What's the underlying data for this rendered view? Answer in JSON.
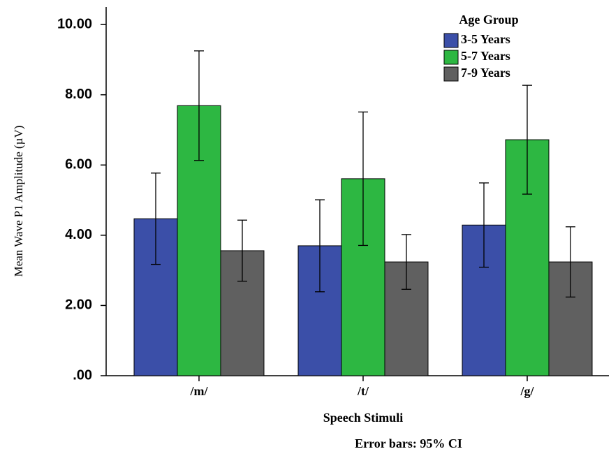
{
  "chart_data": {
    "type": "bar",
    "y_label": "Mean Wave P1 Amplitude (µV)",
    "x_label": "Speech Stimuli",
    "annotation": "Error bars: 95% CI",
    "legend_title": "Age Group",
    "categories": [
      "/m/",
      "/t/",
      "/g/"
    ],
    "series": [
      {
        "name": "3-5 Years",
        "color": "#3b4fa8",
        "values": [
          4.47,
          3.7,
          4.29
        ],
        "errors": [
          1.3,
          1.31,
          1.2
        ]
      },
      {
        "name": "5-7 Years",
        "color": "#2db742",
        "values": [
          7.69,
          5.61,
          6.72
        ],
        "errors": [
          1.56,
          1.9,
          1.55
        ]
      },
      {
        "name": "7-9 Years",
        "color": "#606060",
        "values": [
          3.56,
          3.24,
          3.24
        ],
        "errors": [
          0.87,
          0.78,
          1.0
        ]
      }
    ],
    "ylim": [
      0,
      10.5
    ],
    "yticks": [
      {
        "value": 0,
        "label": ".00"
      },
      {
        "value": 2,
        "label": "2.00"
      },
      {
        "value": 4,
        "label": "4.00"
      },
      {
        "value": 6,
        "label": "6.00"
      },
      {
        "value": 8,
        "label": "8.00"
      },
      {
        "value": 10,
        "label": "10.00"
      }
    ]
  }
}
